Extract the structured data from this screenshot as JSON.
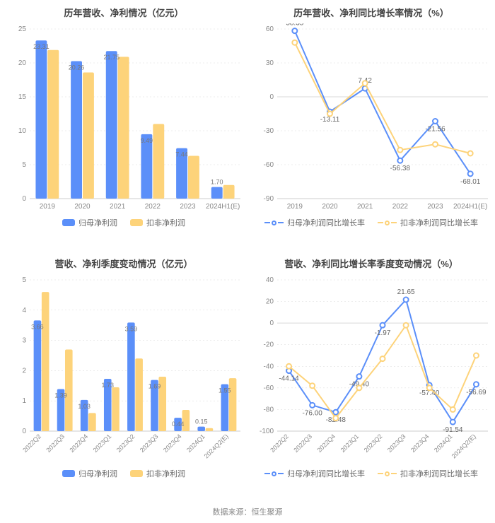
{
  "colors": {
    "blue": "#5b8ff9",
    "yellow": "#fdd37a",
    "grid": "#d9d9d9",
    "axis": "#cccccc",
    "bg": "#ffffff",
    "title": "#444444",
    "text": "#888888"
  },
  "panels": {
    "tl": {
      "type": "bar",
      "title": "历年营收、净利情况（亿元）",
      "categories": [
        "2019",
        "2020",
        "2021",
        "2022",
        "2023",
        "2024H1(E)"
      ],
      "series": [
        {
          "name": "归母净利润",
          "color_key": "blue",
          "values": [
            23.31,
            20.26,
            21.75,
            9.49,
            7.44,
            1.7
          ]
        },
        {
          "name": "扣非净利润",
          "color_key": "yellow",
          "values": [
            21.9,
            18.6,
            20.9,
            11.0,
            6.3,
            2.0
          ]
        }
      ],
      "labeled": [
        23.31,
        20.26,
        21.75,
        9.49,
        7.44,
        1.7
      ],
      "y": {
        "min": 0,
        "max": 25,
        "step": 5
      },
      "bar_width": 0.32,
      "gap": 0.02,
      "legend": [
        {
          "type": "bar",
          "color_key": "blue",
          "label": "归母净利润"
        },
        {
          "type": "bar",
          "color_key": "yellow",
          "label": "扣非净利润"
        }
      ]
    },
    "tr": {
      "type": "line",
      "title": "历年营收、净利同比增长率情况（%）",
      "categories": [
        "2019",
        "2020",
        "2021",
        "2022",
        "2023",
        "2024H1(E)"
      ],
      "series": [
        {
          "name": "归母净利润同比增长率",
          "color_key": "blue",
          "values": [
            58.35,
            -13.11,
            7.42,
            -56.38,
            -21.56,
            -68.01
          ],
          "labels": {
            "0": "58.35",
            "1": "-13.11",
            "2": "7.42",
            "3": "-56.38",
            "4": "-21.56",
            "5": "-68.01"
          }
        },
        {
          "name": "扣非净利润同比增长率",
          "color_key": "yellow",
          "values": [
            48,
            -15,
            12,
            -47,
            -42,
            -50
          ],
          "labels": {}
        }
      ],
      "y": {
        "min": -90,
        "max": 60,
        "step": 30
      },
      "legend": [
        {
          "type": "line",
          "color_key": "blue",
          "label": "归母净利润同比增长率"
        },
        {
          "type": "line",
          "color_key": "yellow",
          "label": "扣非净利润同比增长率"
        }
      ]
    },
    "bl": {
      "type": "bar",
      "title": "营收、净利季度变动情况（亿元）",
      "categories": [
        "2022Q2",
        "2022Q3",
        "2022Q4",
        "2023Q1",
        "2023Q2",
        "2023Q3",
        "2023Q4",
        "2024Q1",
        "2024Q2(E)"
      ],
      "rotate_x": true,
      "series": [
        {
          "name": "归母净利润",
          "color_key": "blue",
          "values": [
            3.66,
            1.39,
            1.03,
            1.73,
            3.59,
            1.69,
            0.44,
            0.15,
            1.55
          ]
        },
        {
          "name": "扣非净利润",
          "color_key": "yellow",
          "values": [
            4.6,
            2.7,
            0.6,
            1.45,
            2.4,
            1.8,
            0.7,
            0.1,
            1.75
          ]
        }
      ],
      "labeled": [
        3.66,
        1.39,
        1.03,
        1.73,
        3.59,
        1.69,
        0.44,
        0.15,
        1.55
      ],
      "y": {
        "min": 0,
        "max": 5,
        "step": 1
      },
      "bar_width": 0.32,
      "gap": 0.02,
      "legend": [
        {
          "type": "bar",
          "color_key": "blue",
          "label": "归母净利润"
        },
        {
          "type": "bar",
          "color_key": "yellow",
          "label": "扣非净利润"
        }
      ]
    },
    "br": {
      "type": "line",
      "title": "营收、净利同比增长率季度变动情况（%）",
      "categories": [
        "2022Q2",
        "2022Q3",
        "2022Q4",
        "2023Q1",
        "2023Q2",
        "2023Q3",
        "2023Q4",
        "2024Q1",
        "2024Q2(E)"
      ],
      "rotate_x": true,
      "series": [
        {
          "name": "归母净利润同比增长率",
          "color_key": "blue",
          "values": [
            -44.14,
            -76.0,
            -82.48,
            -49.4,
            -1.97,
            21.65,
            -57.4,
            -91.54,
            -56.69
          ],
          "labels": {
            "0": "-44.14",
            "1": "-76.00",
            "2": "-82.48",
            "3": "-49.40",
            "4": "-1.97",
            "5": "21.65",
            "6": "-57.40",
            "7": "-91.54",
            "8": "-56.69"
          }
        },
        {
          "name": "扣非净利润同比增长率",
          "color_key": "yellow",
          "values": [
            -40,
            -58,
            -88,
            -60,
            -33,
            -2,
            -60,
            -80,
            -30
          ],
          "labels": {}
        }
      ],
      "y": {
        "min": -100,
        "max": 40,
        "step": 20
      },
      "legend": [
        {
          "type": "line",
          "color_key": "blue",
          "label": "归母净利润同比增长率"
        },
        {
          "type": "line",
          "color_key": "yellow",
          "label": "扣非净利润同比增长率"
        }
      ]
    }
  },
  "source_label": "数据来源：恒生聚源"
}
